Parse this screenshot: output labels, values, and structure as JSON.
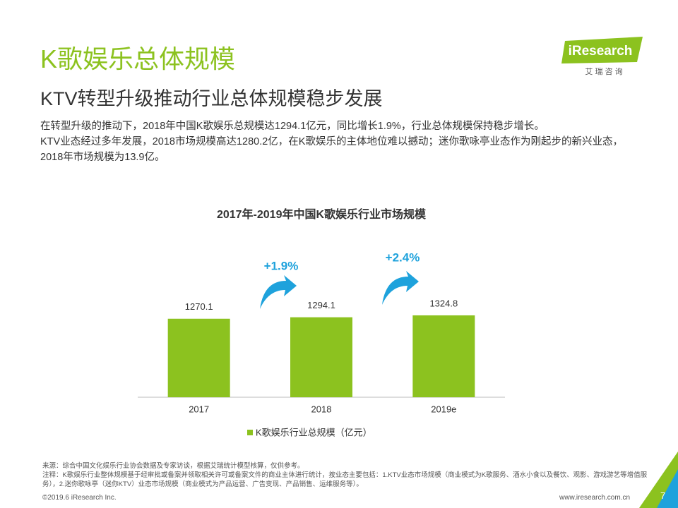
{
  "header": {
    "title": "K歌娱乐总体规模",
    "subtitle": "KTV转型升级推动行业总体规模稳步发展",
    "logo": "iResearch",
    "logo_sub": "艾 瑞 咨 询"
  },
  "body": {
    "paragraphs": [
      "在转型升级的推动下，2018年中国K歌娱乐总规模达1294.1亿元，同比增长1.9%，行业总体规模保持稳步增长。",
      "KTV业态经过多年发展，2018市场规模高达1280.2亿，在K歌娱乐的主体地位难以撼动；迷你歌咏亭业态作为刚起步的新兴业态，2018年市场规模为13.9亿。"
    ]
  },
  "chart_data": {
    "type": "bar",
    "title": "2017年-2019年中国K歌娱乐行业市场规模",
    "categories": [
      "2017",
      "2018",
      "2019e"
    ],
    "series": [
      {
        "name": "K歌娱乐行业总规模（亿元）",
        "color": "#8cc21f",
        "values": [
          1270.1,
          1294.1,
          1324.8
        ]
      }
    ],
    "ylim": [
      0,
      2900
    ],
    "annotations": [
      "+1.9%",
      "+2.4%"
    ],
    "annotation_color": "#1ea2dc"
  },
  "footer": {
    "source": "来源：综合中国文化娱乐行业协会数据及专家访谈，根据艾瑞统计模型核算，仅供参考。",
    "note": "注释：K歌娱乐行业整体规模基于经审批或备案并领取相关许可或备案文件的商业主体进行统计，按业态主要包括：1.KTV业态市场规模（商业模式为K歌服务、酒水小食以及餐饮、观影、游戏游艺等增值服务），2.迷你歌咏亭（迷你KTV）业态市场规模（商业模式为产品运营、广告变现、产品销售、运维服务等）。",
    "copyright": "©2019.6 iResearch Inc.",
    "website": "www.iresearch.com.cn",
    "page": "7"
  }
}
